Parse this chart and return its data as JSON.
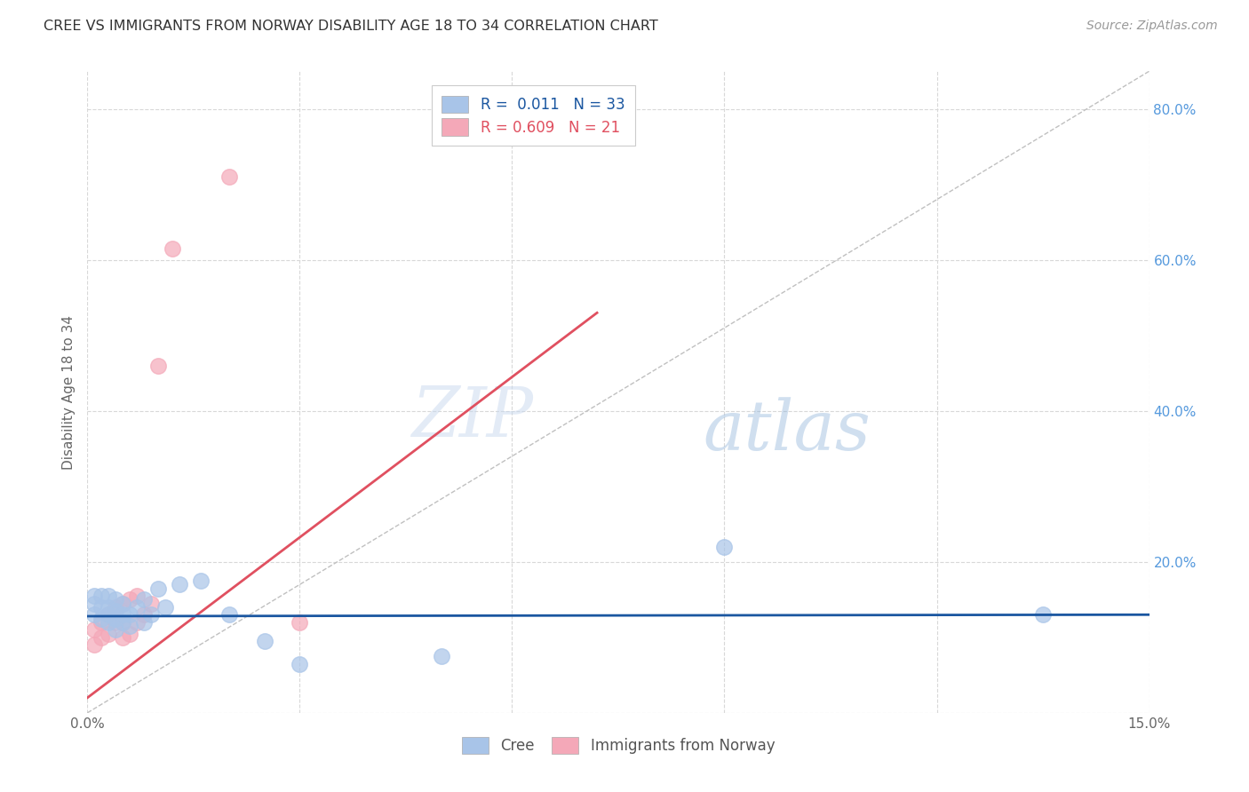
{
  "title": "CREE VS IMMIGRANTS FROM NORWAY DISABILITY AGE 18 TO 34 CORRELATION CHART",
  "source": "Source: ZipAtlas.com",
  "ylabel": "Disability Age 18 to 34",
  "xmin": 0.0,
  "xmax": 0.15,
  "ymin": 0.0,
  "ymax": 0.85,
  "xticks": [
    0.0,
    0.03,
    0.06,
    0.09,
    0.12,
    0.15
  ],
  "yticks": [
    0.0,
    0.2,
    0.4,
    0.6,
    0.8
  ],
  "cree_R": "0.011",
  "cree_N": "33",
  "norway_R": "0.609",
  "norway_N": "21",
  "cree_color": "#a8c4e8",
  "norway_color": "#f4a8b8",
  "trend_cree_color": "#1a56a0",
  "trend_norway_color": "#e05060",
  "diag_color": "#c0c0c0",
  "background_color": "#ffffff",
  "grid_color": "#d8d8d8",
  "watermark_zip": "ZIP",
  "watermark_atlas": "atlas",
  "cree_x": [
    0.001,
    0.001,
    0.001,
    0.002,
    0.002,
    0.002,
    0.003,
    0.003,
    0.003,
    0.003,
    0.004,
    0.004,
    0.004,
    0.004,
    0.005,
    0.005,
    0.005,
    0.006,
    0.006,
    0.007,
    0.008,
    0.008,
    0.009,
    0.01,
    0.011,
    0.013,
    0.016,
    0.02,
    0.025,
    0.03,
    0.05,
    0.09,
    0.135
  ],
  "cree_y": [
    0.13,
    0.145,
    0.155,
    0.125,
    0.14,
    0.155,
    0.12,
    0.13,
    0.14,
    0.155,
    0.11,
    0.125,
    0.135,
    0.15,
    0.12,
    0.13,
    0.145,
    0.115,
    0.13,
    0.14,
    0.12,
    0.15,
    0.13,
    0.165,
    0.14,
    0.17,
    0.175,
    0.13,
    0.095,
    0.065,
    0.075,
    0.22,
    0.13
  ],
  "norway_x": [
    0.001,
    0.001,
    0.002,
    0.002,
    0.003,
    0.003,
    0.004,
    0.004,
    0.005,
    0.005,
    0.005,
    0.006,
    0.006,
    0.007,
    0.007,
    0.008,
    0.009,
    0.01,
    0.012,
    0.02,
    0.03
  ],
  "norway_y": [
    0.09,
    0.11,
    0.1,
    0.12,
    0.105,
    0.13,
    0.12,
    0.14,
    0.1,
    0.12,
    0.145,
    0.105,
    0.15,
    0.12,
    0.155,
    0.13,
    0.145,
    0.46,
    0.615,
    0.71,
    0.12
  ],
  "norway_trend_x0": 0.0,
  "norway_trend_y0": 0.02,
  "norway_trend_x1": 0.072,
  "norway_trend_y1": 0.53,
  "cree_trend_x0": 0.0,
  "cree_trend_y0": 0.128,
  "cree_trend_x1": 0.15,
  "cree_trend_y1": 0.13
}
